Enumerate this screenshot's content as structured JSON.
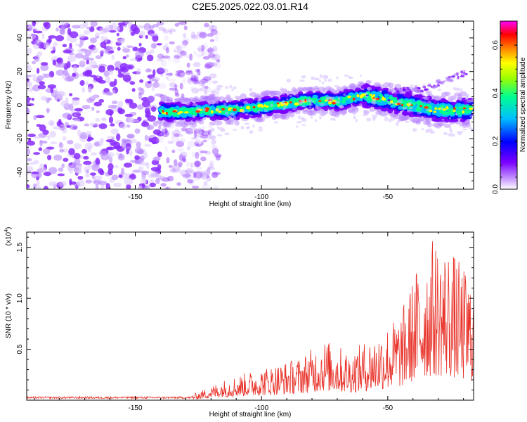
{
  "title": "C2E5.2025.022.03.01.R14",
  "chart_data": [
    {
      "type": "heatmap",
      "title": "C2E5.2025.022.03.01.R14",
      "xlabel": "Height of straight line (km)",
      "ylabel": "Frequency (Hz)",
      "xlim": [
        -193,
        -16
      ],
      "ylim": [
        -50,
        50
      ],
      "x_ticks": [
        -150,
        -100,
        -50
      ],
      "x_tick_labels": [
        "-150",
        "-100",
        "-50"
      ],
      "y_ticks": [
        -40,
        -20,
        0,
        20,
        40
      ],
      "y_tick_labels": [
        "-40",
        "-20",
        "0",
        "20",
        "40"
      ],
      "description_points": {
        "noise_region_x": [
          -193,
          -125
        ],
        "signal_band_center_hz": [
          {
            "x": -140,
            "y": -4
          },
          {
            "x": -130,
            "y": -4
          },
          {
            "x": -120,
            "y": -3
          },
          {
            "x": -110,
            "y": -3
          },
          {
            "x": -100,
            "y": -1
          },
          {
            "x": -90,
            "y": 1
          },
          {
            "x": -80,
            "y": 3
          },
          {
            "x": -70,
            "y": 2
          },
          {
            "x": -60,
            "y": 6
          },
          {
            "x": -50,
            "y": 3
          },
          {
            "x": -40,
            "y": 0
          },
          {
            "x": -30,
            "y": -3
          },
          {
            "x": -18,
            "y": -3
          }
        ],
        "secondary_trend_hz": [
          {
            "x": -50,
            "y": 8
          },
          {
            "x": -35,
            "y": 10
          },
          {
            "x": -18,
            "y": 20
          }
        ]
      },
      "colorbar": {
        "label": "Normalized spectral amplitude",
        "range": [
          0.0,
          0.7
        ],
        "ticks": [
          0.0,
          0.2,
          0.4,
          0.6
        ],
        "tick_labels": [
          "0.0",
          "0.2",
          "0.4",
          "0.6"
        ],
        "colors": [
          "#ffffff",
          "#9b30ff",
          "#0000ff",
          "#00bfff",
          "#00ff7f",
          "#ffff00",
          "#ff7f00",
          "#ff0000",
          "#ff00ff"
        ]
      }
    },
    {
      "type": "line",
      "xlabel": "Height of straight line (km)",
      "ylabel": "SNR (10 * v/v)",
      "y_scale_label": "(x10",
      "y_scale_exp": "4",
      "y_scale_close": ")",
      "xlim": [
        -193,
        -16
      ],
      "ylim": [
        0,
        16500
      ],
      "x_ticks": [
        -150,
        -100,
        -50
      ],
      "x_tick_labels": [
        "-150",
        "-100",
        "-50"
      ],
      "y_ticks": [
        5000,
        10000,
        15000
      ],
      "y_tick_labels": [
        "0.5",
        "1.0",
        "1.5"
      ],
      "color": "#e8332a",
      "envelope": [
        {
          "x": -193,
          "y": 300
        },
        {
          "x": -130,
          "y": 300
        },
        {
          "x": -125,
          "y": 800
        },
        {
          "x": -115,
          "y": 2000
        },
        {
          "x": -105,
          "y": 2800
        },
        {
          "x": -95,
          "y": 3500
        },
        {
          "x": -85,
          "y": 4200
        },
        {
          "x": -75,
          "y": 6000
        },
        {
          "x": -65,
          "y": 4800
        },
        {
          "x": -55,
          "y": 6500
        },
        {
          "x": -45,
          "y": 8500
        },
        {
          "x": -38,
          "y": 13500
        },
        {
          "x": -32,
          "y": 16000
        },
        {
          "x": -25,
          "y": 15000
        },
        {
          "x": -20,
          "y": 13000
        },
        {
          "x": -16,
          "y": 12000
        }
      ]
    }
  ]
}
